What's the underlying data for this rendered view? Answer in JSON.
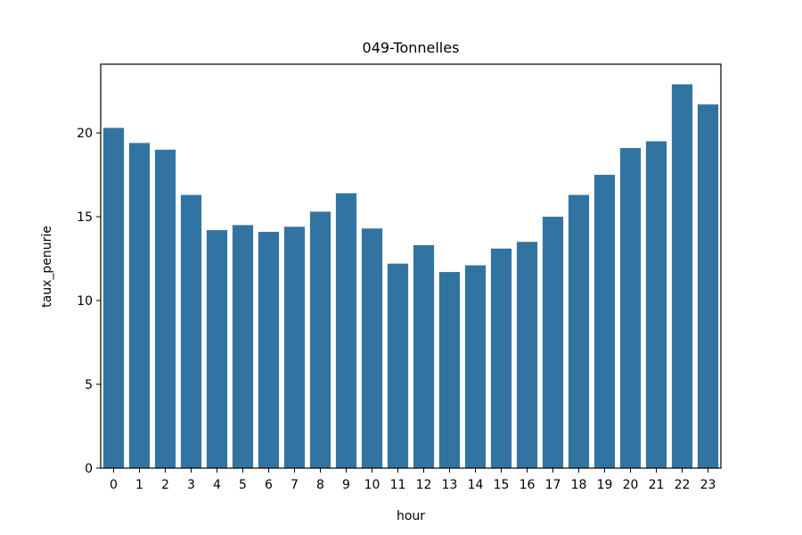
{
  "chart_data": {
    "type": "bar",
    "title": "049-Tonnelles",
    "xlabel": "hour",
    "ylabel": "taux_penurie",
    "categories": [
      "0",
      "1",
      "2",
      "3",
      "4",
      "5",
      "6",
      "7",
      "8",
      "9",
      "10",
      "11",
      "12",
      "13",
      "14",
      "15",
      "16",
      "17",
      "18",
      "19",
      "20",
      "21",
      "22",
      "23"
    ],
    "values": [
      20.3,
      19.4,
      19.0,
      16.3,
      14.2,
      14.5,
      14.1,
      14.4,
      15.3,
      16.4,
      14.3,
      12.2,
      13.3,
      11.7,
      12.1,
      13.1,
      13.5,
      15.0,
      16.3,
      17.5,
      19.1,
      19.5,
      22.9,
      21.7
    ],
    "yticks": [
      "0",
      "5",
      "10",
      "15",
      "20"
    ],
    "ylim": [
      0,
      24.1
    ],
    "bar_color": "#3274a1",
    "grid": false,
    "legend": "none"
  }
}
